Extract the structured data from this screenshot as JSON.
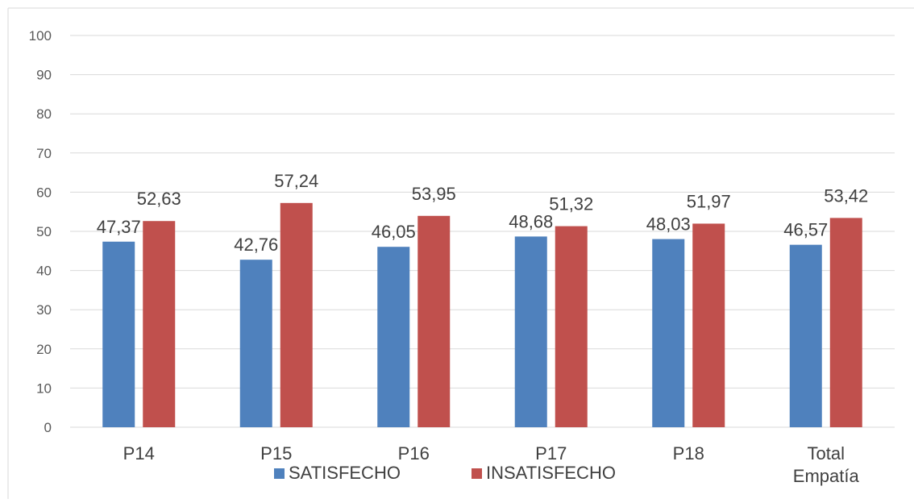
{
  "chart_data": {
    "type": "bar",
    "title": "",
    "xlabel": "",
    "ylabel": "",
    "categories": [
      "P14",
      "P15",
      "P16",
      "P17",
      "P18",
      "Total\nEmpatía"
    ],
    "series": [
      {
        "name": "SATISFECHO",
        "color": "#4f81bd",
        "values": [
          47.37,
          42.76,
          46.05,
          48.68,
          48.03,
          46.57
        ]
      },
      {
        "name": "INSATISFECHO",
        "color": "#c0504d",
        "values": [
          52.63,
          57.24,
          53.95,
          51.32,
          51.97,
          53.42
        ]
      }
    ],
    "ylim": [
      0,
      100
    ],
    "yticks": [
      0,
      10,
      20,
      30,
      40,
      50,
      60,
      70,
      80,
      90,
      100
    ],
    "grid": true,
    "legend": "bottom-center",
    "data_labels": true
  }
}
